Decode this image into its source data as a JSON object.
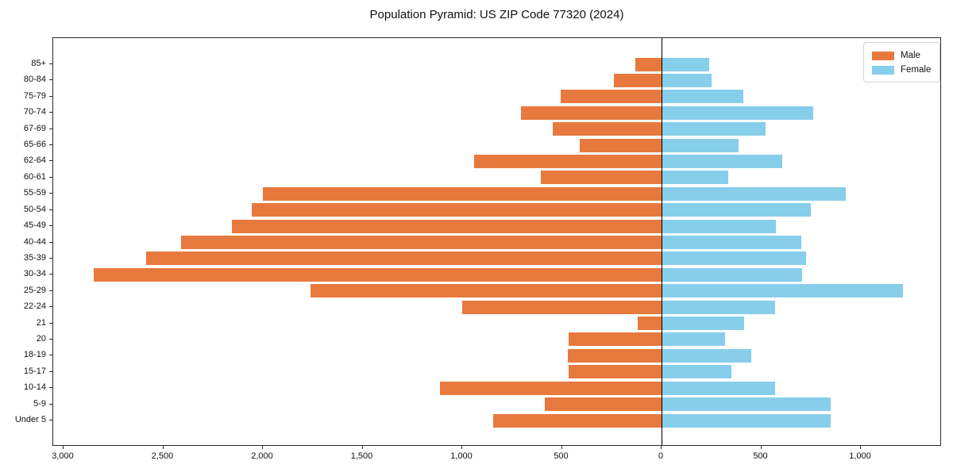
{
  "chart_data": {
    "type": "bar",
    "subtype": "population-pyramid",
    "title": "Population Pyramid: US ZIP Code 77320 (2024)",
    "orientation": "horizontal",
    "grid": false,
    "categories": [
      "85+",
      "80-84",
      "75-79",
      "70-74",
      "67-69",
      "65-66",
      "62-64",
      "60-61",
      "55-59",
      "50-54",
      "45-49",
      "40-44",
      "35-39",
      "30-34",
      "25-29",
      "22-24",
      "21",
      "20",
      "18-19",
      "15-17",
      "10-14",
      "5-9",
      "Under 5"
    ],
    "series": [
      {
        "name": "Male",
        "side": "left",
        "color": "#e8793e",
        "values": [
          130,
          240,
          505,
          705,
          545,
          410,
          940,
          605,
          2000,
          2055,
          2155,
          2410,
          2585,
          2850,
          1760,
          1000,
          120,
          465,
          470,
          465,
          1110,
          585,
          845
        ]
      },
      {
        "name": "Female",
        "side": "right",
        "color": "#87ceeb",
        "values": [
          240,
          250,
          410,
          760,
          520,
          385,
          605,
          335,
          925,
          750,
          575,
          700,
          725,
          705,
          1210,
          570,
          415,
          320,
          450,
          350,
          570,
          850,
          850
        ]
      }
    ],
    "x_axis": {
      "min": -3050,
      "max": 1405,
      "ticks": [
        {
          "value": -3000,
          "label": "3,000"
        },
        {
          "value": -2500,
          "label": "2,500"
        },
        {
          "value": -2000,
          "label": "2,000"
        },
        {
          "value": -1500,
          "label": "1,500"
        },
        {
          "value": -1000,
          "label": "1,000"
        },
        {
          "value": -500,
          "label": "500"
        },
        {
          "value": 0,
          "label": "0"
        },
        {
          "value": 500,
          "label": "500"
        },
        {
          "value": 1000,
          "label": "1,000"
        }
      ]
    },
    "legend": {
      "position": "upper-right",
      "entries": [
        "Male",
        "Female"
      ]
    }
  }
}
